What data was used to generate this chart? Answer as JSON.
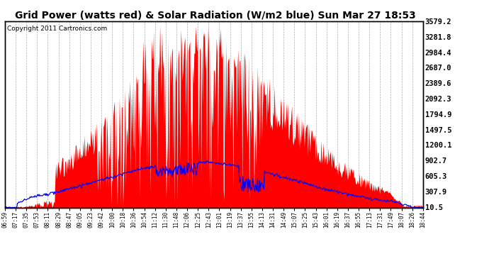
{
  "title": "Grid Power (watts red) & Solar Radiation (W/m2 blue) Sun Mar 27 18:53",
  "copyright": "Copyright 2011 Cartronics.com",
  "yticks": [
    10.5,
    307.9,
    605.3,
    902.7,
    1200.1,
    1497.5,
    1794.9,
    2092.3,
    2389.6,
    2687.0,
    2984.4,
    3281.8,
    3579.2
  ],
  "ymin": 0,
  "ymax": 3579.2,
  "xtick_labels": [
    "06:59",
    "07:17",
    "07:35",
    "07:53",
    "08:11",
    "08:29",
    "08:47",
    "09:05",
    "09:23",
    "09:42",
    "10:00",
    "10:18",
    "10:36",
    "10:54",
    "11:12",
    "11:30",
    "11:48",
    "12:06",
    "12:25",
    "12:43",
    "13:01",
    "13:19",
    "13:37",
    "13:55",
    "14:13",
    "14:31",
    "14:49",
    "15:07",
    "15:25",
    "15:43",
    "16:01",
    "16:19",
    "16:37",
    "16:55",
    "17:13",
    "17:31",
    "17:49",
    "18:07",
    "18:26",
    "18:44"
  ],
  "plot_bg_color": "#FFFFFF",
  "fig_bg_color": "#FFFFFF",
  "fill_color": "#FF0000",
  "line_color": "#0000FF",
  "grid_color": "#AAAAAA",
  "title_fontsize": 10.5,
  "copyright_fontsize": 7
}
